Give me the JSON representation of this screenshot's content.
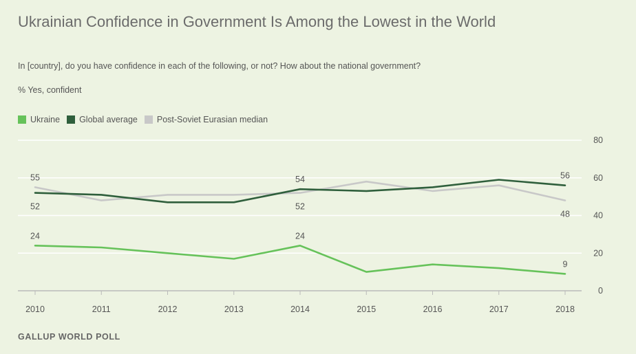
{
  "title": "Ukrainian Confidence in Government Is Among the Lowest in the World",
  "subtitle": "In [country], do you have confidence in each of the following, or not? How about the national government?",
  "unit_label": "% Yes, confident",
  "source": "GALLUP WORLD POLL",
  "colors": {
    "ukraine": "#66c25a",
    "global": "#2f5f3c",
    "postsoviet": "#c8c8c8",
    "grid": "#ffffff",
    "background": "#edf3e2"
  },
  "chart_data": {
    "type": "line",
    "x": [
      2010,
      2011,
      2012,
      2013,
      2014,
      2015,
      2016,
      2017,
      2018
    ],
    "ylim": [
      0,
      80
    ],
    "yticks": [
      0,
      20,
      40,
      60,
      80
    ],
    "grid": true,
    "legend_position": "top-left",
    "series": [
      {
        "name": "Ukraine",
        "color_key": "ukraine",
        "values": [
          24,
          23,
          20,
          17,
          24,
          10,
          14,
          12,
          9
        ]
      },
      {
        "name": "Global average",
        "color_key": "global",
        "values": [
          52,
          51,
          47,
          47,
          54,
          53,
          55,
          59,
          56
        ]
      },
      {
        "name": "Post-Soviet Eurasian median",
        "color_key": "postsoviet",
        "values": [
          55,
          48,
          51,
          51,
          52,
          58,
          53,
          56,
          48
        ]
      }
    ],
    "data_labels": [
      {
        "series": 2,
        "index": 0,
        "text": "55",
        "pos": "above"
      },
      {
        "series": 1,
        "index": 0,
        "text": "52",
        "pos": "below"
      },
      {
        "series": 0,
        "index": 0,
        "text": "24",
        "pos": "above"
      },
      {
        "series": 1,
        "index": 4,
        "text": "54",
        "pos": "above"
      },
      {
        "series": 2,
        "index": 4,
        "text": "52",
        "pos": "below"
      },
      {
        "series": 0,
        "index": 4,
        "text": "24",
        "pos": "above"
      },
      {
        "series": 1,
        "index": 8,
        "text": "56",
        "pos": "above"
      },
      {
        "series": 2,
        "index": 8,
        "text": "48",
        "pos": "below"
      },
      {
        "series": 0,
        "index": 8,
        "text": "9",
        "pos": "above"
      }
    ]
  }
}
